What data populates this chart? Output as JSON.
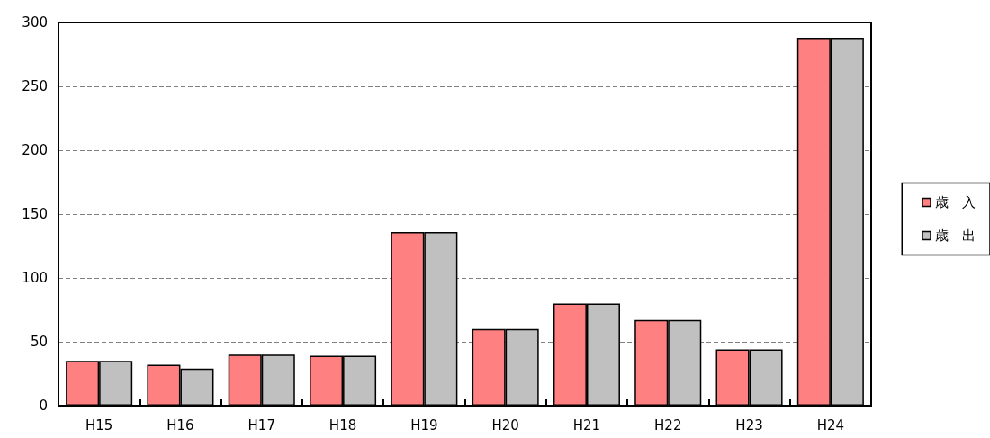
{
  "chart_data": {
    "type": "bar",
    "categories": [
      "H15",
      "H16",
      "H17",
      "H18",
      "H19",
      "H20",
      "H21",
      "H22",
      "H23",
      "H24"
    ],
    "series": [
      {
        "name": "歳　入",
        "color": "#ff8080",
        "values": [
          35,
          32,
          40,
          39,
          136,
          60,
          80,
          67,
          44,
          288
        ]
      },
      {
        "name": "歳　出",
        "color": "#c0c0c0",
        "values": [
          35,
          29,
          40,
          39,
          136,
          60,
          80,
          67,
          44,
          288
        ]
      }
    ],
    "ylim": [
      0,
      300
    ],
    "yticks": [
      0,
      50,
      100,
      150,
      200,
      250,
      300
    ],
    "grid": "y",
    "legend": "right"
  }
}
